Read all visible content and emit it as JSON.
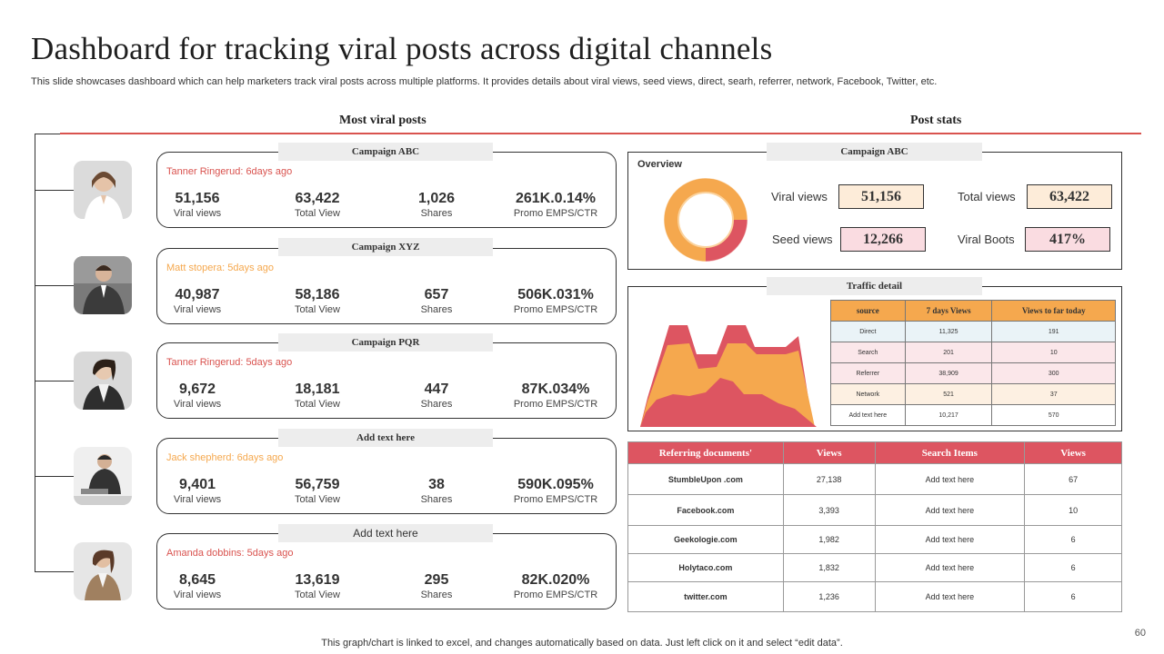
{
  "title": "Dashboard for tracking viral posts across digital channels",
  "subtitle": "This slide showcases dashboard which can help marketers track viral posts across multiple platforms. It provides details about viral views, seed views, direct, searh, referrer, network,  Facebook, Twitter, etc.",
  "sections": {
    "left": "Most viral posts",
    "right": "Post stats"
  },
  "colors": {
    "red": "#dd5561",
    "orange": "#f5a84e",
    "accent_line": "#d9534f"
  },
  "posts": [
    {
      "tab": "Campaign ABC",
      "author": "Tanner Ringerud: 6days ago",
      "author_color": "#d9534f",
      "viral": "51,156",
      "total": "63,422",
      "shares": "1,026",
      "promo": "261K.0.14%"
    },
    {
      "tab": "Campaign XYZ",
      "author": "Matt stopera: 5days ago",
      "author_color": "#f5a84e",
      "viral": "40,987",
      "total": "58,186",
      "shares": "657",
      "promo": "506K.031%"
    },
    {
      "tab": "Campaign PQR",
      "author": "Tanner Ringerud: 5days ago",
      "author_color": "#d9534f",
      "viral": "9,672",
      "total": "18,181",
      "shares": "447",
      "promo": "87K.034%"
    },
    {
      "tab": "Add text here",
      "author": "Jack shepherd: 6days ago",
      "author_color": "#f5a84e",
      "viral": "9,401",
      "total": "56,759",
      "shares": "38",
      "promo": "590K.095%"
    },
    {
      "tab": "Add  text here",
      "author": "Amanda dobbins: 5days ago",
      "author_color": "#d9534f",
      "viral": "8,645",
      "total": "13,619",
      "shares": "295",
      "promo": "82K.020%"
    }
  ],
  "stat_labels": {
    "viral": "Viral views",
    "total": "Total View",
    "shares": "Shares",
    "promo": "Promo EMPS/CTR"
  },
  "overview": {
    "tab": "Campaign ABC",
    "label": "Overview",
    "kpis": {
      "viral_label": "Viral views",
      "viral_value": "51,156",
      "total_label": "Total views",
      "total_value": "63,422",
      "seed_label": "Seed views",
      "seed_value": "12,266",
      "boots_label": "Viral Boots",
      "boots_value": "417%"
    },
    "donut_shares": [
      75,
      25
    ]
  },
  "traffic": {
    "tab": "Traffic detail",
    "headers": [
      "source",
      "7 days Views",
      "Views to far today"
    ],
    "rows": [
      [
        "Direct",
        "11,325",
        "191"
      ],
      [
        "Search",
        "201",
        "10"
      ],
      [
        "Referrer",
        "38,909",
        "300"
      ],
      [
        "Network",
        "521",
        "37"
      ],
      [
        "Add text here",
        "10,217",
        "570"
      ]
    ]
  },
  "referring": {
    "headers": [
      "Referring documents'",
      "Views",
      "Search Items",
      "Views"
    ],
    "rows": [
      [
        "StumbleUpon .com",
        "27,138",
        "Add text here",
        "67"
      ],
      [
        "Facebook.com",
        "3,393",
        "Add text here",
        "10"
      ],
      [
        "Geekologie.com",
        "1,982",
        "Add text here",
        "6"
      ],
      [
        "Holytaco.com",
        "1,832",
        "Add text here",
        "6"
      ],
      [
        "twitter.com",
        "1,236",
        "Add text here",
        "6"
      ]
    ]
  },
  "footer": "This graph/chart is linked to excel,  and changes automatically based on data. Just left click on it and select “edit data”.",
  "page_number": "60"
}
